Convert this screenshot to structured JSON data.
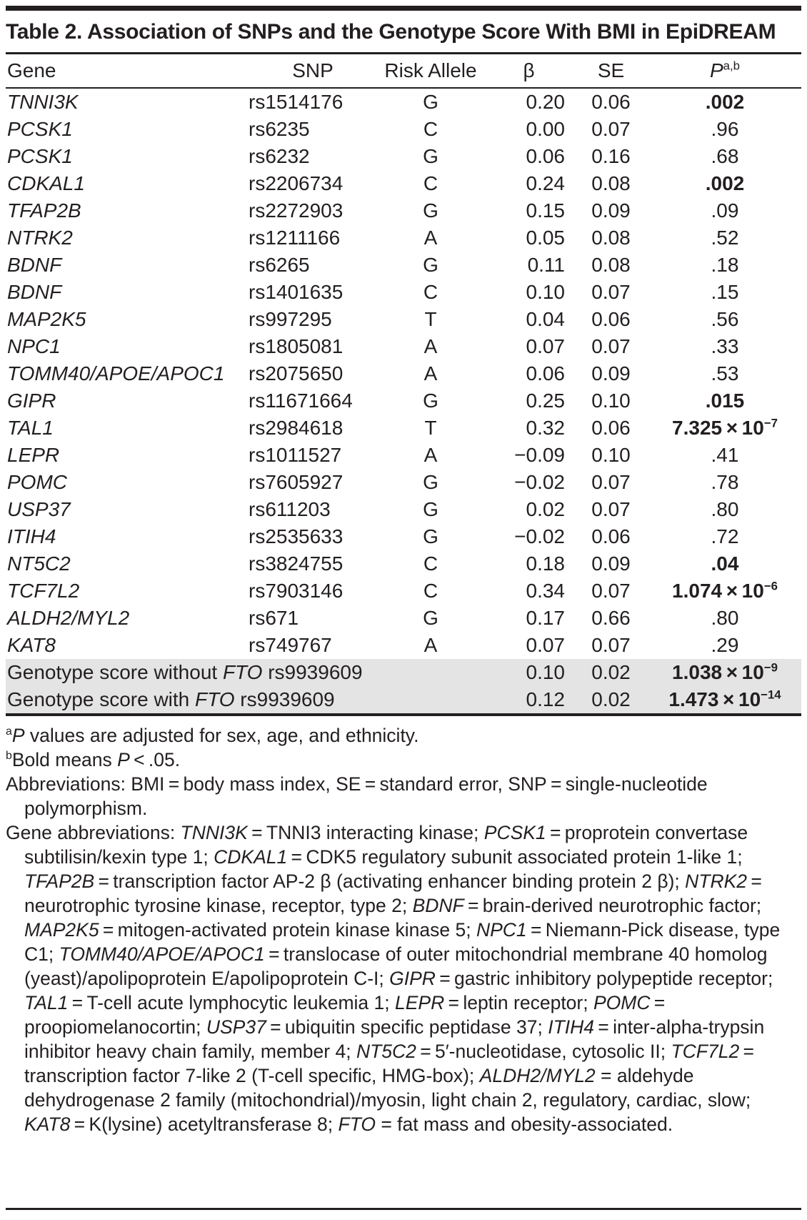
{
  "title": "Table 2. Association of SNPs and the Genotype Score With BMI in EpiDREAM",
  "colors": {
    "text": "#231f20",
    "summary_row_background": "#e4e4e4"
  },
  "table": {
    "columns": {
      "gene": "Gene",
      "snp": "SNP",
      "allele": "Risk Allele",
      "beta": "β",
      "se": "SE",
      "p": [
        {
          "t": "P",
          "i": true
        },
        {
          "t": "a,b",
          "sup": true
        }
      ]
    },
    "rows": [
      {
        "gene": "TNNI3K",
        "snp": "rs1514176",
        "allele": "G",
        "beta": "0.20",
        "se": "0.06",
        "p": [
          {
            "t": ".002",
            "b": true
          }
        ]
      },
      {
        "gene": "PCSK1",
        "snp": "rs6235",
        "allele": "C",
        "beta": "0.00",
        "se": "0.07",
        "p": ".96"
      },
      {
        "gene": "PCSK1",
        "snp": "rs6232",
        "allele": "G",
        "beta": "0.06",
        "se": "0.16",
        "p": ".68"
      },
      {
        "gene": "CDKAL1",
        "snp": "rs2206734",
        "allele": "C",
        "beta": "0.24",
        "se": "0.08",
        "p": [
          {
            "t": ".002",
            "b": true
          }
        ]
      },
      {
        "gene": "TFAP2B",
        "snp": "rs2272903",
        "allele": "G",
        "beta": "0.15",
        "se": "0.09",
        "p": ".09"
      },
      {
        "gene": "NTRK2",
        "snp": "rs1211166",
        "allele": "A",
        "beta": "0.05",
        "se": "0.08",
        "p": ".52"
      },
      {
        "gene": "BDNF",
        "snp": "rs6265",
        "allele": "G",
        "beta": "0.11",
        "se": "0.08",
        "p": ".18"
      },
      {
        "gene": "BDNF",
        "snp": "rs1401635",
        "allele": "C",
        "beta": "0.10",
        "se": "0.07",
        "p": ".15"
      },
      {
        "gene": "MAP2K5",
        "snp": "rs997295",
        "allele": "T",
        "beta": "0.04",
        "se": "0.06",
        "p": ".56"
      },
      {
        "gene": "NPC1",
        "snp": "rs1805081",
        "allele": "A",
        "beta": "0.07",
        "se": "0.07",
        "p": ".33"
      },
      {
        "gene": "TOMM40/APOE/APOC1",
        "snp": "rs2075650",
        "allele": "A",
        "beta": "0.06",
        "se": "0.09",
        "p": ".53"
      },
      {
        "gene": "GIPR",
        "snp": "rs11671664",
        "allele": "G",
        "beta": "0.25",
        "se": "0.10",
        "p": [
          {
            "t": ".015",
            "b": true
          }
        ]
      },
      {
        "gene": "TAL1",
        "snp": "rs2984618",
        "allele": "T",
        "beta": "0.32",
        "se": "0.06",
        "p": [
          {
            "t": "7.325 × 10",
            "b": true
          },
          {
            "t": "−7",
            "b": true,
            "sup": true
          }
        ]
      },
      {
        "gene": "LEPR",
        "snp": "rs1011527",
        "allele": "A",
        "beta": "−0.09",
        "se": "0.10",
        "p": ".41"
      },
      {
        "gene": "POMC",
        "snp": "rs7605927",
        "allele": "G",
        "beta": "−0.02",
        "se": "0.07",
        "p": ".78"
      },
      {
        "gene": "USP37",
        "snp": "rs611203",
        "allele": "G",
        "beta": "0.02",
        "se": "0.07",
        "p": ".80"
      },
      {
        "gene": "ITIH4",
        "snp": "rs2535633",
        "allele": "G",
        "beta": "−0.02",
        "se": "0.06",
        "p": ".72"
      },
      {
        "gene": "NT5C2",
        "snp": "rs3824755",
        "allele": "C",
        "beta": "0.18",
        "se": "0.09",
        "p": [
          {
            "t": ".04",
            "b": true
          }
        ]
      },
      {
        "gene": "TCF7L2",
        "snp": "rs7903146",
        "allele": "C",
        "beta": "0.34",
        "se": "0.07",
        "p": [
          {
            "t": "1.074 × 10",
            "b": true
          },
          {
            "t": "−6",
            "b": true,
            "sup": true
          }
        ]
      },
      {
        "gene": "ALDH2/MYL2",
        "snp": "rs671",
        "allele": "G",
        "beta": "0.17",
        "se": "0.66",
        "p": ".80"
      },
      {
        "gene": "KAT8",
        "snp": "rs749767",
        "allele": "A",
        "beta": "0.07",
        "se": "0.07",
        "p": ".29"
      }
    ],
    "summary_rows": [
      {
        "label": [
          {
            "t": "Genotype score without "
          },
          {
            "t": "FTO",
            "i": true
          },
          {
            "t": " rs9939609"
          }
        ],
        "beta": "0.10",
        "se": "0.02",
        "p": [
          {
            "t": "1.038 × 10",
            "b": true
          },
          {
            "t": "−9",
            "b": true,
            "sup": true
          }
        ]
      },
      {
        "label": [
          {
            "t": "Genotype score with "
          },
          {
            "t": "FTO",
            "i": true
          },
          {
            "t": " rs9939609"
          }
        ],
        "beta": "0.12",
        "se": "0.02",
        "p": [
          {
            "t": "1.473 × 10",
            "b": true
          },
          {
            "t": "−14",
            "b": true,
            "sup": true
          }
        ]
      }
    ]
  },
  "footnotes": [
    [
      {
        "t": "a",
        "sup": true
      },
      {
        "t": "P",
        "i": true
      },
      {
        "t": " values are adjusted for sex, age, and ethnicity."
      }
    ],
    [
      {
        "t": "b",
        "sup": true
      },
      {
        "t": "Bold means "
      },
      {
        "t": "P",
        "i": true
      },
      {
        "t": " < .05."
      }
    ],
    [
      {
        "t": "Abbreviations: BMI = body mass index, SE = standard error, SNP = single-nucleotide polymorphism."
      }
    ],
    [
      {
        "t": "Gene abbreviations: "
      },
      {
        "t": "TNNI3K",
        "i": true
      },
      {
        "t": " = TNNI3 interacting kinase; "
      },
      {
        "t": "PCSK1",
        "i": true
      },
      {
        "t": " = proprotein convertase subtilisin/kexin type 1; "
      },
      {
        "t": "CDKAL1",
        "i": true
      },
      {
        "t": " = CDK5 regulatory subunit associated protein 1-like 1; "
      },
      {
        "t": "TFAP2B",
        "i": true
      },
      {
        "t": " = transcription factor AP-2 β (activating enhancer binding protein 2 β); "
      },
      {
        "t": "NTRK2",
        "i": true
      },
      {
        "t": " = neurotrophic tyrosine kinase, receptor, type 2; "
      },
      {
        "t": "BDNF",
        "i": true
      },
      {
        "t": " = brain-derived neurotrophic factor; "
      },
      {
        "t": "MAP2K5",
        "i": true
      },
      {
        "t": " = mitogen-activated protein kinase kinase 5; "
      },
      {
        "t": "NPC1",
        "i": true
      },
      {
        "t": " = Niemann-Pick disease, type C1; "
      },
      {
        "t": "TOMM40/APOE/APOC1",
        "i": true
      },
      {
        "t": " = translocase of outer mitochondrial membrane 40 homolog (yeast)/apolipoprotein E/apolipoprotein C-I; "
      },
      {
        "t": "GIPR",
        "i": true
      },
      {
        "t": " = gastric inhibitory polypeptide receptor; "
      },
      {
        "t": "TAL1",
        "i": true
      },
      {
        "t": " = T-cell acute lymphocytic leukemia 1; "
      },
      {
        "t": "LEPR",
        "i": true
      },
      {
        "t": " = leptin receptor; "
      },
      {
        "t": "POMC",
        "i": true
      },
      {
        "t": " = proopiomelanocortin; "
      },
      {
        "t": "USP37",
        "i": true
      },
      {
        "t": " = ubiquitin specific peptidase 37; "
      },
      {
        "t": "ITIH4",
        "i": true
      },
      {
        "t": " = inter-alpha-trypsin inhibitor heavy chain family, member 4; "
      },
      {
        "t": "NT5C2",
        "i": true
      },
      {
        "t": " = 5′-nucleotidase, cytosolic II; "
      },
      {
        "t": "TCF7L2",
        "i": true
      },
      {
        "t": " = transcription factor 7-like 2 (T-cell specific, HMG-box); "
      },
      {
        "t": "ALDH2/MYL2",
        "i": true
      },
      {
        "t": " = aldehyde dehydrogenase 2 family (mitochondrial)/myosin, light chain 2, regulatory, cardiac, slow; "
      },
      {
        "t": "KAT8",
        "i": true
      },
      {
        "t": " = K(lysine) acetyltransferase 8; "
      },
      {
        "t": "FTO",
        "i": true
      },
      {
        "t": " = fat mass and obesity-associated."
      }
    ]
  ]
}
